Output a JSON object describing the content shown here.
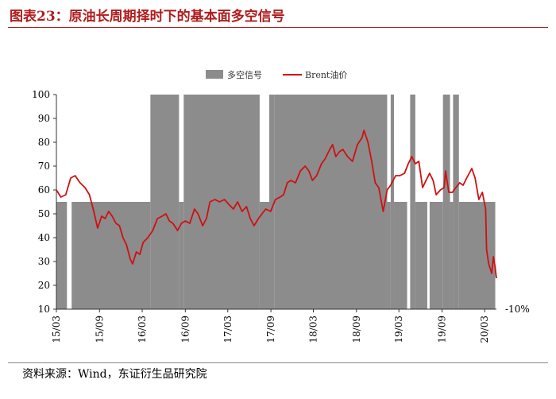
{
  "header": {
    "title": "图表23：原油长周期择时下的基本面多空信号"
  },
  "footer": {
    "source": "资料来源：Wind，东证衍生品研究院"
  },
  "colors": {
    "title": "#b01c1c",
    "signal_fill": "#8c8c8c",
    "line": "#d01010"
  },
  "chart_data": {
    "type": "line",
    "title": "",
    "xlabel": "",
    "ylabel": "",
    "ylim": [
      10,
      100
    ],
    "yticks": [
      10,
      20,
      30,
      40,
      50,
      60,
      70,
      80,
      90,
      100
    ],
    "xlim": [
      "2015-03-01",
      "2020-04-20"
    ],
    "xtick_labels": [
      "15/03",
      "15/09",
      "16/03",
      "16/09",
      "17/03",
      "17/09",
      "18/03",
      "18/09",
      "19/03",
      "19/09",
      "20/03"
    ],
    "xtick_dates": [
      "2015-03-01",
      "2015-09-01",
      "2016-03-01",
      "2016-09-01",
      "2017-03-01",
      "2017-09-01",
      "2018-03-01",
      "2018-09-01",
      "2019-03-01",
      "2019-09-01",
      "2020-03-01"
    ],
    "extra_label": "-10%",
    "legend": {
      "position": "top-center",
      "signal_label": "多空信号",
      "line_label": "Brent油价"
    },
    "signal": {
      "levels": {
        "long": 100,
        "short": 55
      },
      "periods": [
        {
          "start": "2015-03-01",
          "end": "2015-04-15",
          "level": 55
        },
        {
          "start": "2015-05-05",
          "end": "2016-04-05",
          "level": 55
        },
        {
          "start": "2016-04-05",
          "end": "2016-08-05",
          "level": 100
        },
        {
          "start": "2016-08-05",
          "end": "2016-08-25",
          "level": 55
        },
        {
          "start": "2016-08-25",
          "end": "2017-07-15",
          "level": 100
        },
        {
          "start": "2017-07-15",
          "end": "2017-08-25",
          "level": 55
        },
        {
          "start": "2017-08-25",
          "end": "2017-09-15",
          "level": 100
        },
        {
          "start": "2017-09-15",
          "end": "2019-01-10",
          "level": 100
        },
        {
          "start": "2019-01-10",
          "end": "2019-01-25",
          "level": 55
        },
        {
          "start": "2019-01-25",
          "end": "2019-02-08",
          "level": 100
        },
        {
          "start": "2019-02-08",
          "end": "2019-04-05",
          "level": 55
        },
        {
          "start": "2019-04-18",
          "end": "2019-05-10",
          "level": 100
        },
        {
          "start": "2019-05-10",
          "end": "2019-06-30",
          "level": 55
        },
        {
          "start": "2019-07-10",
          "end": "2019-09-05",
          "level": 55
        },
        {
          "start": "2019-09-05",
          "end": "2019-10-05",
          "level": 100
        },
        {
          "start": "2019-10-05",
          "end": "2019-10-18",
          "level": 55
        },
        {
          "start": "2019-10-18",
          "end": "2019-11-12",
          "level": 100
        },
        {
          "start": "2019-11-12",
          "end": "2020-04-15",
          "level": 55
        }
      ]
    },
    "series": [
      {
        "name": "Brent油价",
        "x": [
          "2015-03-01",
          "2015-03-20",
          "2015-04-10",
          "2015-05-01",
          "2015-05-20",
          "2015-06-10",
          "2015-07-01",
          "2015-07-20",
          "2015-08-05",
          "2015-08-24",
          "2015-09-10",
          "2015-09-25",
          "2015-10-10",
          "2015-10-25",
          "2015-11-10",
          "2015-11-25",
          "2015-12-10",
          "2015-12-25",
          "2016-01-10",
          "2016-01-20",
          "2016-02-05",
          "2016-02-20",
          "2016-03-05",
          "2016-03-25",
          "2016-04-15",
          "2016-05-05",
          "2016-05-25",
          "2016-06-10",
          "2016-06-25",
          "2016-07-10",
          "2016-07-30",
          "2016-08-15",
          "2016-09-01",
          "2016-09-20",
          "2016-10-10",
          "2016-10-25",
          "2016-11-14",
          "2016-11-30",
          "2016-12-15",
          "2017-01-05",
          "2017-01-25",
          "2017-02-15",
          "2017-03-05",
          "2017-03-25",
          "2017-04-12",
          "2017-05-01",
          "2017-05-20",
          "2017-06-05",
          "2017-06-21",
          "2017-07-10",
          "2017-07-25",
          "2017-08-10",
          "2017-08-31",
          "2017-09-20",
          "2017-10-10",
          "2017-10-25",
          "2017-11-10",
          "2017-11-25",
          "2017-12-15",
          "2018-01-05",
          "2018-01-25",
          "2018-02-10",
          "2018-02-25",
          "2018-03-15",
          "2018-04-05",
          "2018-04-20",
          "2018-05-10",
          "2018-05-22",
          "2018-06-05",
          "2018-06-20",
          "2018-07-05",
          "2018-07-25",
          "2018-08-15",
          "2018-09-05",
          "2018-09-25",
          "2018-10-03",
          "2018-10-20",
          "2018-11-05",
          "2018-11-20",
          "2018-12-05",
          "2018-12-24",
          "2019-01-10",
          "2019-01-25",
          "2019-02-15",
          "2019-03-05",
          "2019-03-25",
          "2019-04-10",
          "2019-04-25",
          "2019-05-10",
          "2019-05-25",
          "2019-06-10",
          "2019-06-25",
          "2019-07-10",
          "2019-07-25",
          "2019-08-07",
          "2019-08-25",
          "2019-09-10",
          "2019-09-16",
          "2019-09-30",
          "2019-10-15",
          "2019-10-30",
          "2019-11-15",
          "2019-11-30",
          "2019-12-15",
          "2020-01-06",
          "2020-01-20",
          "2020-02-05",
          "2020-02-20",
          "2020-03-05",
          "2020-03-09",
          "2020-03-18",
          "2020-03-31",
          "2020-04-07",
          "2020-04-14",
          "2020-04-20"
        ],
        "values": [
          60,
          57,
          58,
          65,
          66,
          63,
          61,
          58,
          52,
          44,
          49,
          48,
          51,
          49,
          46,
          45,
          40,
          37,
          31,
          29,
          34,
          33,
          38,
          40,
          43,
          48,
          49,
          50,
          47,
          46,
          43,
          46,
          47,
          46,
          52,
          50,
          45,
          48,
          55,
          56,
          55,
          56,
          54,
          52,
          55,
          51,
          53,
          48,
          45,
          48,
          50,
          52,
          51,
          56,
          57,
          58,
          63,
          64,
          63,
          68,
          70,
          68,
          64,
          66,
          71,
          73,
          77,
          79,
          74,
          76,
          77,
          74,
          72,
          79,
          82,
          85,
          80,
          72,
          63,
          61,
          51,
          60,
          62,
          66,
          66,
          67,
          71,
          74,
          71,
          72,
          61,
          64,
          67,
          64,
          58,
          60,
          61,
          68,
          59,
          59,
          61,
          63,
          62,
          65,
          69,
          65,
          56,
          59,
          52,
          35,
          29,
          25,
          32,
          28,
          23
        ]
      }
    ]
  }
}
